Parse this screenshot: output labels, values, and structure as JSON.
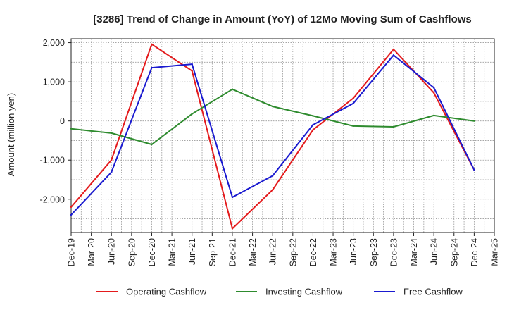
{
  "chart_data": {
    "type": "line",
    "title": "[3286]  Trend of Change in Amount (YoY) of 12Mo Moving Sum of Cashflows",
    "xlabel": "",
    "ylabel": "Amount (million yen)",
    "ylim": [
      -2850,
      2100
    ],
    "yticks": [
      2000,
      1000,
      0,
      -1000,
      -2000
    ],
    "ytick_labels": [
      "2,000",
      "1,000",
      "0",
      "-1,000",
      "-2,000"
    ],
    "categories": [
      "Dec-19",
      "Mar-20",
      "Jun-20",
      "Sep-20",
      "Dec-20",
      "Mar-21",
      "Jun-21",
      "Sep-21",
      "Dec-21",
      "Mar-22",
      "Jun-22",
      "Sep-22",
      "Dec-22",
      "Mar-23",
      "Jun-23",
      "Sep-23",
      "Dec-23",
      "Mar-24",
      "Jun-24",
      "Sep-24",
      "Dec-24",
      "Mar-25"
    ],
    "grid": true,
    "legend_position": "bottom",
    "series": [
      {
        "name": "Operating Cashflow",
        "color": "#e41a1c",
        "points": [
          [
            0,
            -2200
          ],
          [
            2,
            -1000
          ],
          [
            4,
            1960
          ],
          [
            6,
            1280
          ],
          [
            8,
            -2750
          ],
          [
            10,
            -1760
          ],
          [
            12,
            -230
          ],
          [
            14,
            580
          ],
          [
            16,
            1830
          ],
          [
            18,
            720
          ],
          [
            20,
            -1250
          ]
        ]
      },
      {
        "name": "Investing Cashflow",
        "color": "#2e8b2e",
        "points": [
          [
            0,
            -200
          ],
          [
            2,
            -310
          ],
          [
            4,
            -600
          ],
          [
            6,
            180
          ],
          [
            8,
            810
          ],
          [
            10,
            370
          ],
          [
            12,
            130
          ],
          [
            14,
            -130
          ],
          [
            16,
            -150
          ],
          [
            18,
            140
          ],
          [
            20,
            0
          ]
        ]
      },
      {
        "name": "Free Cashflow",
        "color": "#1a1ad0",
        "points": [
          [
            0,
            -2400
          ],
          [
            2,
            -1310
          ],
          [
            4,
            1360
          ],
          [
            6,
            1450
          ],
          [
            8,
            -1950
          ],
          [
            10,
            -1400
          ],
          [
            12,
            -100
          ],
          [
            14,
            450
          ],
          [
            16,
            1680
          ],
          [
            18,
            850
          ],
          [
            20,
            -1250
          ]
        ]
      }
    ]
  }
}
